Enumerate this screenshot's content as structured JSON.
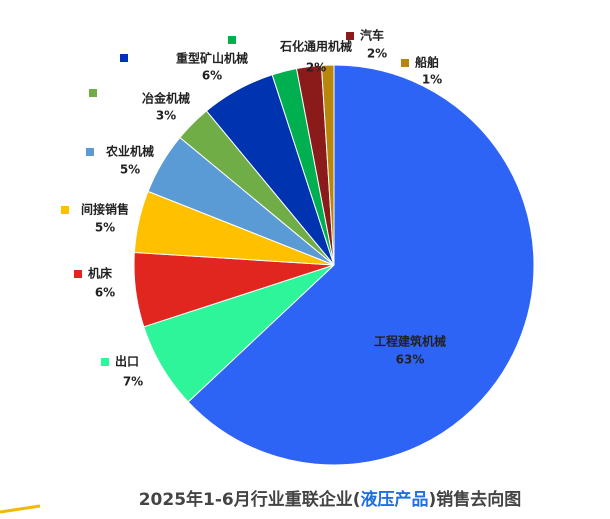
{
  "chart_data": {
    "type": "pie",
    "title": [
      "2025年1-6月行业重联企业(",
      "液压产品",
      ")销售去向图"
    ],
    "categories": [
      "工程建筑机械",
      "出口",
      "机床",
      "间接销售",
      "农业机械",
      "冶金机械",
      "重型矿山机械",
      "石化通用机械",
      "汽车",
      "船舶"
    ],
    "values": [
      63,
      7,
      6,
      5,
      5,
      3,
      6,
      2,
      2,
      1
    ],
    "value_labels": [
      "63%",
      "7%",
      "6%",
      "5%",
      "5%",
      "3%",
      "6%",
      "2%",
      "2%",
      "1%"
    ],
    "colors": [
      "#2e64f5",
      "#2ff59a",
      "#e0261e",
      "#ffc000",
      "#5b9bd5",
      "#70ad47",
      "#0033b0",
      "#00b050",
      "#8b1a1a",
      "#b8860b"
    ]
  }
}
